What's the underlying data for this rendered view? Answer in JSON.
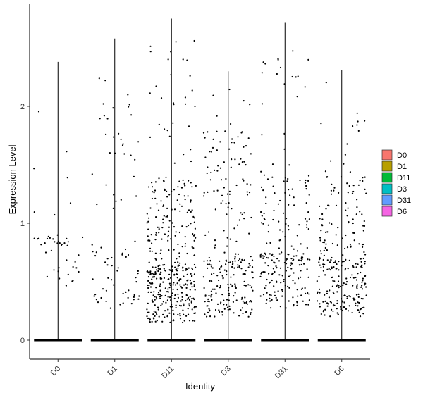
{
  "chart_data": {
    "type": "violin-jitter",
    "title": "",
    "xlabel": "Identity",
    "ylabel": "Expression Level",
    "categories": [
      "D0",
      "D1",
      "D11",
      "D3",
      "D31",
      "D6"
    ],
    "ylim": [
      -0.08,
      2.8
    ],
    "yticks": [
      0,
      1,
      2
    ],
    "grid": false,
    "legend_position": "right",
    "legend": [
      {
        "label": "D0",
        "color": "#F8766D"
      },
      {
        "label": "D1",
        "color": "#B79F00"
      },
      {
        "label": "D11",
        "color": "#00BA38"
      },
      {
        "label": "D3",
        "color": "#00BFC4"
      },
      {
        "label": "D31",
        "color": "#619CFF"
      },
      {
        "label": "D6",
        "color": "#F564E3"
      }
    ],
    "series": [
      {
        "category": "D0",
        "max": 2.38,
        "nonzero_points": 45,
        "mode": [
          0.4,
          0.5
        ]
      },
      {
        "category": "D1",
        "max": 2.58,
        "nonzero_points": 80,
        "mode": [
          0.3,
          2.0
        ]
      },
      {
        "category": "D11",
        "max": 2.75,
        "nonzero_points": 420,
        "mode": [
          0.15,
          1.0
        ]
      },
      {
        "category": "D3",
        "max": 2.3,
        "nonzero_points": 260,
        "mode": [
          0.2,
          1.4
        ]
      },
      {
        "category": "D31",
        "max": 2.72,
        "nonzero_points": 230,
        "mode": [
          0.25,
          1.0
        ]
      },
      {
        "category": "D6",
        "max": 2.31,
        "nonzero_points": 280,
        "mode": [
          0.2,
          1.0
        ]
      }
    ],
    "zero_baseline": true,
    "point_color": "#000000"
  }
}
